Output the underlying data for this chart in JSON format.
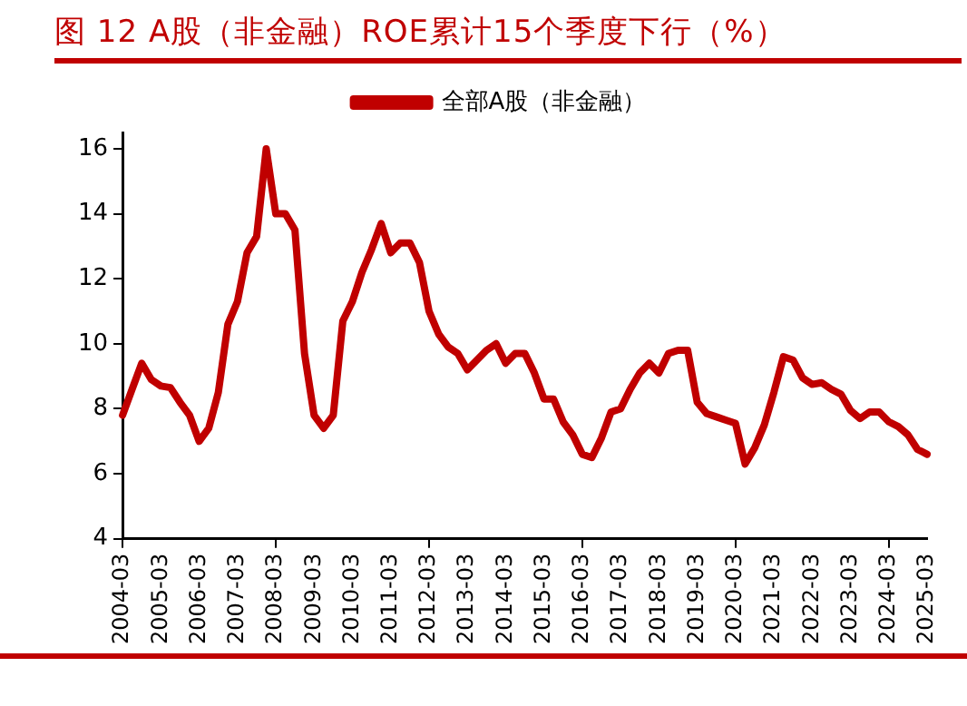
{
  "chart_data": {
    "type": "line",
    "title": "图 12 A股（非金融）ROE累计15个季度下行（%）",
    "categories": [
      "2004-03",
      null,
      null,
      null,
      "2005-03",
      null,
      null,
      null,
      "2006-03",
      null,
      null,
      null,
      "2007-03",
      null,
      null,
      null,
      "2008-03",
      null,
      null,
      null,
      "2009-03",
      null,
      null,
      null,
      "2010-03",
      null,
      null,
      null,
      "2011-03",
      null,
      null,
      null,
      "2012-03",
      null,
      null,
      null,
      "2013-03",
      null,
      null,
      null,
      "2014-03",
      null,
      null,
      null,
      "2015-03",
      null,
      null,
      null,
      "2016-03",
      null,
      null,
      null,
      "2017-03",
      null,
      null,
      null,
      "2018-03",
      null,
      null,
      null,
      "2019-03",
      null,
      null,
      null,
      "2020-03",
      null,
      null,
      null,
      "2021-03",
      null,
      null,
      null,
      "2022-03",
      null,
      null,
      null,
      "2023-03",
      null,
      null,
      null,
      "2024-03",
      null,
      null,
      null,
      "2025-03"
    ],
    "series": [
      {
        "name": "全部A股（非金融）",
        "color": "#c00000",
        "values": [
          7.8,
          8.6,
          9.4,
          8.9,
          8.7,
          8.65,
          8.2,
          7.8,
          7.0,
          7.4,
          8.5,
          10.6,
          11.3,
          12.8,
          13.3,
          16.0,
          14.0,
          14.0,
          13.5,
          9.7,
          7.8,
          7.4,
          7.8,
          10.7,
          11.3,
          12.2,
          12.9,
          13.7,
          12.8,
          13.1,
          13.1,
          12.5,
          11.0,
          10.3,
          9.9,
          9.7,
          9.2,
          9.5,
          9.8,
          10.0,
          9.4,
          9.7,
          9.7,
          9.1,
          8.3,
          8.3,
          7.6,
          7.2,
          6.6,
          6.5,
          7.1,
          7.9,
          8.0,
          8.6,
          9.1,
          9.4,
          9.1,
          9.7,
          9.8,
          9.8,
          8.2,
          7.85,
          7.75,
          7.65,
          7.55,
          6.3,
          6.8,
          7.5,
          8.5,
          9.6,
          9.5,
          8.95,
          8.75,
          8.8,
          8.6,
          8.45,
          7.95,
          7.7,
          7.9,
          7.9,
          7.6,
          7.45,
          7.2,
          6.75,
          6.6
        ]
      }
    ],
    "ylim": [
      4,
      16.5
    ],
    "yticks": [
      4,
      6,
      8,
      10,
      12,
      14,
      16
    ],
    "grid": false,
    "legend": "top",
    "marker": "none",
    "line_style": "solid"
  }
}
